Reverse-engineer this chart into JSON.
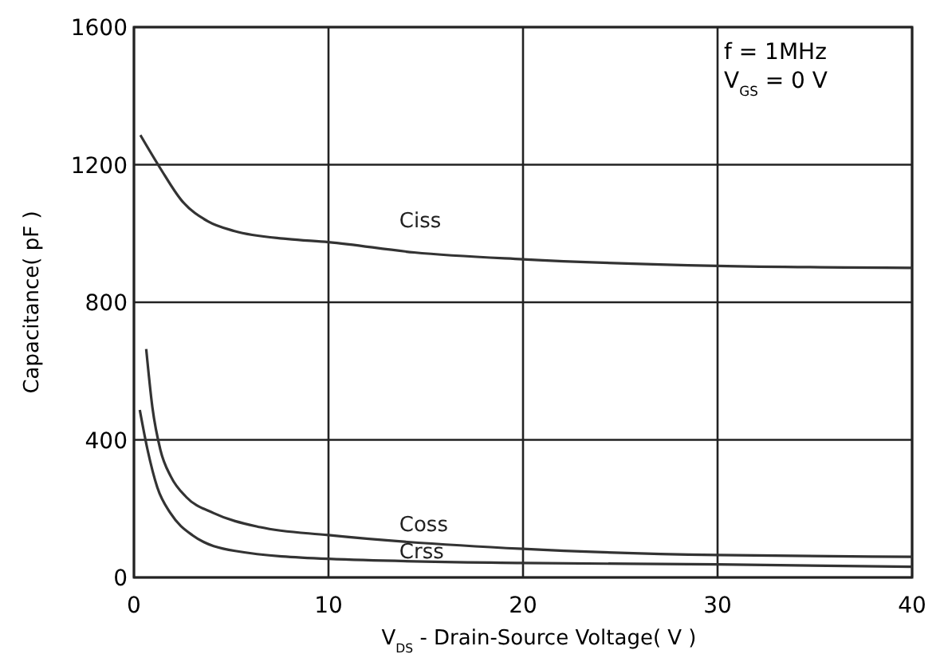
{
  "chart_data": {
    "type": "line",
    "xlabel": "V$_{DS}$ - Drain-Source Voltage( V )",
    "ylabel": "Capacitance( pF )",
    "annotations": [
      "f = 1MHz",
      "V$_{GS}$ = 0 V"
    ],
    "xlim": [
      0,
      40
    ],
    "xticks": [
      0,
      10,
      20,
      30,
      40
    ],
    "ylim": [
      0,
      1600
    ],
    "yticks": [
      0,
      400,
      800,
      1200,
      1600
    ],
    "grid": true,
    "marker": "none",
    "line_style": "solid",
    "series": [
      {
        "name": "Ciss",
        "color": "#333333",
        "x": [
          0.33,
          1.36,
          2.45,
          3.81,
          5.17,
          7.9,
          10,
          14.4,
          20,
          30,
          40
        ],
        "values": [
          1286,
          1189,
          1096,
          1035,
          1007,
          984,
          975,
          945,
          925,
          906,
          900
        ]
      },
      {
        "name": "Coss",
        "color": "#333333",
        "x": [
          0.63,
          0.95,
          1.36,
          1.9,
          2.7,
          4.1,
          6.5,
          10,
          20,
          30,
          40
        ],
        "values": [
          664,
          494,
          371,
          293,
          233,
          187,
          146,
          123,
          83,
          65,
          60
        ]
      },
      {
        "name": "Crss",
        "color": "#333333",
        "x": [
          0.3,
          0.7,
          1.2,
          1.9,
          3.0,
          5.2,
          10,
          20,
          30,
          40
        ],
        "values": [
          487,
          371,
          262,
          185,
          123,
          77,
          54,
          42,
          38,
          31
        ]
      }
    ]
  }
}
